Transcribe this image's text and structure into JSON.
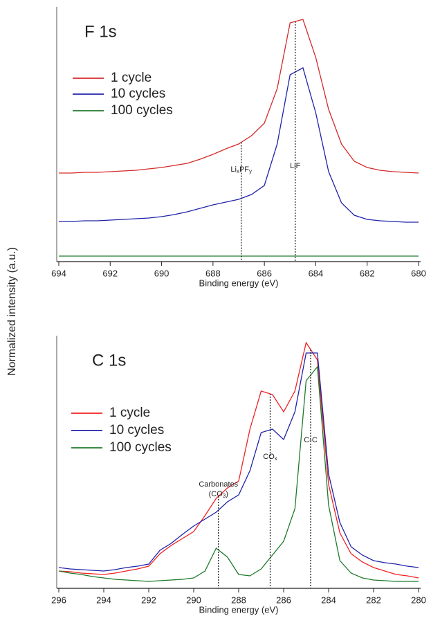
{
  "chart_data": [
    {
      "type": "line",
      "title": "F 1s",
      "xlabel": "Binding energy (eV)",
      "ylabel": "Normalized intensity (a.u.)",
      "xlim": [
        694,
        680
      ],
      "ylim": [
        0,
        368
      ],
      "xticks": [
        694,
        692,
        690,
        688,
        686,
        684,
        682,
        680
      ],
      "x": [
        694,
        693.5,
        693,
        692.5,
        692,
        691.5,
        691,
        690.5,
        690,
        689.5,
        689,
        688.5,
        688,
        687.5,
        687,
        686.5,
        686,
        685.5,
        685,
        684.5,
        684,
        683.5,
        683,
        682.5,
        682,
        681.5,
        681,
        680.5,
        680
      ],
      "series": [
        {
          "name": "1 cycle",
          "color": "#d42a2a",
          "values": [
            128,
            128,
            129,
            129,
            130,
            131,
            132,
            134,
            136,
            139,
            142,
            148,
            155,
            163,
            170,
            182,
            200,
            250,
            345,
            350,
            295,
            220,
            170,
            145,
            136,
            132,
            130,
            129,
            128
          ]
        },
        {
          "name": "10 cycles",
          "color": "#1f22a8",
          "values": [
            58,
            58,
            59,
            59,
            60,
            61,
            62,
            63,
            65,
            68,
            72,
            77,
            82,
            86,
            90,
            97,
            110,
            170,
            270,
            280,
            215,
            130,
            85,
            67,
            61,
            59,
            58,
            57,
            57
          ]
        },
        {
          "name": "100 cycles",
          "color": "#1e7a2a",
          "values": [
            8,
            8,
            8,
            8,
            8,
            8,
            8,
            8,
            8,
            8,
            8,
            8,
            8,
            8,
            8,
            8,
            8,
            8,
            8,
            8,
            8,
            8,
            8,
            8,
            8,
            8,
            8,
            8,
            8
          ]
        }
      ],
      "annotations": [
        {
          "x": 686.9,
          "label": [
            [
              {
                "text": "Li"
              },
              {
                "sub": "x"
              },
              {
                "text": "PF"
              },
              {
                "sub": "y"
              }
            ]
          ]
        },
        {
          "x": 684.8,
          "label": [
            [
              {
                "text": "LiF"
              }
            ]
          ]
        }
      ]
    },
    {
      "type": "line",
      "title": "C 1s",
      "xlabel": "Binding energy (eV)",
      "xlim": [
        296,
        280
      ],
      "ylim": [
        0,
        365
      ],
      "xticks": [
        296,
        294,
        292,
        290,
        288,
        286,
        284,
        282,
        280
      ],
      "x": [
        296,
        295.5,
        295,
        294.5,
        294,
        293.5,
        293,
        292.5,
        292,
        291.5,
        291,
        290.5,
        290,
        289.5,
        289,
        288.5,
        288,
        287.5,
        287,
        286.5,
        286,
        285.5,
        285,
        284.5,
        284,
        283.5,
        283,
        282.5,
        282,
        281.5,
        281,
        280.5,
        280
      ],
      "series": [
        {
          "name": "1 cycle",
          "color": "#f02020",
          "values": [
            25,
            24,
            22,
            21,
            20,
            22,
            25,
            28,
            32,
            50,
            62,
            72,
            82,
            105,
            130,
            145,
            155,
            230,
            285,
            280,
            255,
            285,
            355,
            330,
            150,
            80,
            50,
            38,
            30,
            25,
            20,
            18,
            15
          ]
        },
        {
          "name": "10 cycles",
          "color": "#1f22a8",
          "values": [
            30,
            28,
            27,
            26,
            25,
            27,
            30,
            32,
            35,
            55,
            65,
            78,
            90,
            100,
            110,
            125,
            135,
            170,
            225,
            230,
            215,
            255,
            340,
            340,
            165,
            95,
            60,
            48,
            40,
            37,
            35,
            32,
            30
          ]
        },
        {
          "name": "100 cycles",
          "color": "#1e7a2a",
          "values": [
            25,
            22,
            20,
            17,
            15,
            13,
            12,
            11,
            10,
            11,
            12,
            13,
            15,
            25,
            58,
            45,
            20,
            18,
            28,
            48,
            68,
            115,
            300,
            320,
            120,
            40,
            22,
            15,
            12,
            11,
            10,
            10,
            10
          ]
        }
      ],
      "annotations": [
        {
          "x": 288.9,
          "label": [
            [
              {
                "text": "Carbonates"
              }
            ],
            [
              {
                "text": "(CO"
              },
              {
                "sub": "3"
              },
              {
                "text": ")"
              }
            ]
          ]
        },
        {
          "x": 286.6,
          "label": [
            [
              {
                "text": "CO"
              },
              {
                "sub": "x"
              }
            ]
          ]
        },
        {
          "x": 284.8,
          "label": [
            [
              {
                "text": "C-C"
              }
            ]
          ]
        }
      ]
    }
  ]
}
